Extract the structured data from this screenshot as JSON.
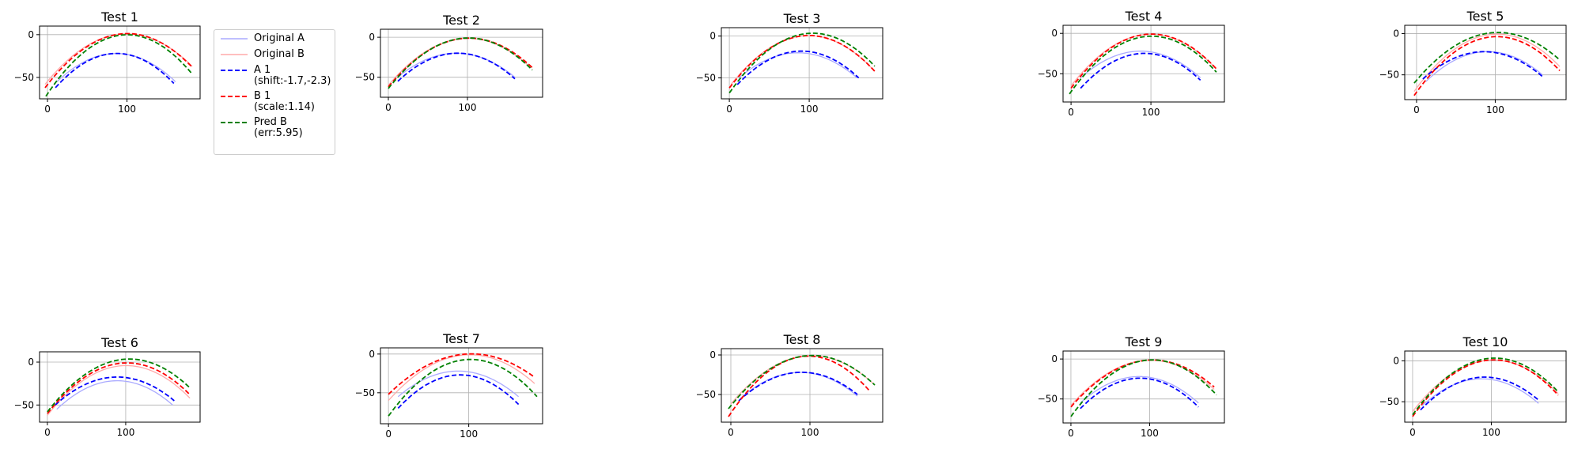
{
  "chart_data": [
    {
      "type": "line",
      "title": "Test 1",
      "xlim": [
        -10,
        192
      ],
      "ylim": [
        -75,
        10
      ],
      "xticks": [
        0,
        100
      ],
      "yticks": [
        0,
        -50
      ],
      "grid": true,
      "series": [
        {
          "name": "Original A",
          "color": "#aaaaff",
          "style": "solid",
          "x": [
            12,
            86,
            161
          ],
          "y": [
            -55,
            -22,
            -55
          ]
        },
        {
          "name": "Original B",
          "color": "#ffaaaa",
          "style": "solid",
          "x": [
            -3,
            86,
            182
          ],
          "y": [
            -58,
            0,
            -37
          ]
        },
        {
          "name": "A 1",
          "color": "#0000ff",
          "style": "dashed",
          "x": [
            10,
            84,
            159
          ],
          "y": [
            -62,
            -22,
            -57
          ]
        },
        {
          "name": "B 1",
          "color": "#ff0000",
          "style": "dashed",
          "x": [
            -3,
            86,
            182
          ],
          "y": [
            -62,
            0,
            -38
          ]
        },
        {
          "name": "Pred B",
          "color": "#008000",
          "style": "dashed",
          "x": [
            -2,
            84,
            182
          ],
          "y": [
            -72,
            -2,
            -46
          ]
        }
      ]
    },
    {
      "type": "line",
      "title": "Test 2",
      "xlim": [
        -10,
        195
      ],
      "ylim": [
        -75,
        10
      ],
      "xticks": [
        0,
        100
      ],
      "yticks": [
        0,
        -50
      ],
      "grid": true,
      "series": [
        {
          "name": "Original A",
          "color": "#aaaaff",
          "style": "solid",
          "x": [
            12,
            90,
            160
          ],
          "y": [
            -50,
            -20,
            -50
          ]
        },
        {
          "name": "Original B",
          "color": "#ffaaaa",
          "style": "solid",
          "x": [
            0,
            90,
            180
          ],
          "y": [
            -60,
            -2,
            -38
          ]
        },
        {
          "name": "A 1",
          "color": "#0000ff",
          "style": "dashed",
          "x": [
            12,
            90,
            160
          ],
          "y": [
            -55,
            -20,
            -52
          ]
        },
        {
          "name": "B 1",
          "color": "#ff0000",
          "style": "dashed",
          "x": [
            0,
            90,
            182
          ],
          "y": [
            -62,
            -2,
            -38
          ]
        },
        {
          "name": "Pred B",
          "color": "#008000",
          "style": "dashed",
          "x": [
            0,
            88,
            182
          ],
          "y": [
            -64,
            -2,
            -41
          ]
        }
      ]
    },
    {
      "type": "line",
      "title": "Test 3",
      "xlim": [
        -10,
        192
      ],
      "ylim": [
        -75,
        10
      ],
      "xticks": [
        0,
        100
      ],
      "yticks": [
        0,
        -50
      ],
      "grid": true,
      "series": [
        {
          "name": "Original A",
          "color": "#aaaaff",
          "style": "solid",
          "x": [
            12,
            88,
            160
          ],
          "y": [
            -50,
            -20,
            -50
          ]
        },
        {
          "name": "Original B",
          "color": "#ffaaaa",
          "style": "solid",
          "x": [
            2,
            90,
            182
          ],
          "y": [
            -58,
            0,
            -42
          ]
        },
        {
          "name": "A 1",
          "color": "#0000ff",
          "style": "dashed",
          "x": [
            10,
            90,
            162
          ],
          "y": [
            -58,
            -18,
            -50
          ]
        },
        {
          "name": "B 1",
          "color": "#ff0000",
          "style": "dashed",
          "x": [
            0,
            90,
            182
          ],
          "y": [
            -62,
            0,
            -42
          ]
        },
        {
          "name": "Pred B",
          "color": "#008000",
          "style": "dashed",
          "x": [
            0,
            90,
            182
          ],
          "y": [
            -68,
            2,
            -36
          ]
        }
      ]
    },
    {
      "type": "line",
      "title": "Test 4",
      "xlim": [
        -10,
        192
      ],
      "ylim": [
        -85,
        10
      ],
      "xticks": [
        0,
        100
      ],
      "yticks": [
        0,
        -50
      ],
      "grid": true,
      "series": [
        {
          "name": "Original A",
          "color": "#aaaaff",
          "style": "solid",
          "x": [
            12,
            86,
            162
          ],
          "y": [
            -55,
            -22,
            -55
          ]
        },
        {
          "name": "Original B",
          "color": "#ffaaaa",
          "style": "solid",
          "x": [
            0,
            88,
            182
          ],
          "y": [
            -65,
            -2,
            -44
          ]
        },
        {
          "name": "A 1",
          "color": "#0000ff",
          "style": "dashed",
          "x": [
            12,
            86,
            162
          ],
          "y": [
            -68,
            -25,
            -58
          ]
        },
        {
          "name": "B 1",
          "color": "#ff0000",
          "style": "dashed",
          "x": [
            0,
            88,
            182
          ],
          "y": [
            -68,
            -2,
            -44
          ]
        },
        {
          "name": "Pred B",
          "color": "#008000",
          "style": "dashed",
          "x": [
            -2,
            86,
            182
          ],
          "y": [
            -75,
            -5,
            -48
          ]
        }
      ]
    },
    {
      "type": "line",
      "title": "Test 5",
      "xlim": [
        -15,
        190
      ],
      "ylim": [
        -80,
        10
      ],
      "xticks": [
        0,
        100
      ],
      "yticks": [
        0,
        -50
      ],
      "grid": true,
      "series": [
        {
          "name": "Original A",
          "color": "#aaaaff",
          "style": "solid",
          "x": [
            12,
            86,
            160
          ],
          "y": [
            -58,
            -22,
            -50
          ]
        },
        {
          "name": "Original B",
          "color": "#ffaaaa",
          "style": "solid",
          "x": [
            -3,
            88,
            182
          ],
          "y": [
            -70,
            -2,
            -40
          ]
        },
        {
          "name": "A 1",
          "color": "#0000ff",
          "style": "dashed",
          "x": [
            8,
            86,
            160
          ],
          "y": [
            -55,
            -22,
            -52
          ]
        },
        {
          "name": "B 1",
          "color": "#ff0000",
          "style": "dashed",
          "x": [
            -3,
            88,
            182
          ],
          "y": [
            -75,
            -5,
            -45
          ]
        },
        {
          "name": "Pred B",
          "color": "#008000",
          "style": "dashed",
          "x": [
            -3,
            88,
            182
          ],
          "y": [
            -60,
            0,
            -32
          ]
        }
      ]
    },
    {
      "type": "line",
      "title": "Test 6",
      "xlim": [
        -10,
        195
      ],
      "ylim": [
        -70,
        12
      ],
      "xticks": [
        0,
        100
      ],
      "yticks": [
        0,
        -50
      ],
      "grid": true,
      "series": [
        {
          "name": "Original A",
          "color": "#aaaaff",
          "style": "solid",
          "x": [
            12,
            96,
            160
          ],
          "y": [
            -55,
            -22,
            -50
          ]
        },
        {
          "name": "Original B",
          "color": "#ffaaaa",
          "style": "solid",
          "x": [
            0,
            88,
            182
          ],
          "y": [
            -62,
            -5,
            -42
          ]
        },
        {
          "name": "A 1",
          "color": "#0000ff",
          "style": "dashed",
          "x": [
            10,
            100,
            162
          ],
          "y": [
            -50,
            -18,
            -45
          ]
        },
        {
          "name": "B 1",
          "color": "#ff0000",
          "style": "dashed",
          "x": [
            0,
            88,
            182
          ],
          "y": [
            -60,
            -2,
            -38
          ]
        },
        {
          "name": "Pred B",
          "color": "#008000",
          "style": "dashed",
          "x": [
            0,
            88,
            182
          ],
          "y": [
            -58,
            2,
            -30
          ]
        }
      ]
    },
    {
      "type": "line",
      "title": "Test 7",
      "xlim": [
        -10,
        192
      ],
      "ylim": [
        -90,
        8
      ],
      "xticks": [
        0,
        100
      ],
      "yticks": [
        0,
        -50
      ],
      "grid": true,
      "series": [
        {
          "name": "Original A",
          "color": "#aaaaff",
          "style": "solid",
          "x": [
            12,
            86,
            162
          ],
          "y": [
            -55,
            -22,
            -55
          ]
        },
        {
          "name": "Original B",
          "color": "#ffaaaa",
          "style": "solid",
          "x": [
            0,
            88,
            182
          ],
          "y": [
            -60,
            -2,
            -38
          ]
        },
        {
          "name": "A 1",
          "color": "#0000ff",
          "style": "dashed",
          "x": [
            12,
            86,
            162
          ],
          "y": [
            -70,
            -27,
            -65
          ]
        },
        {
          "name": "B 1",
          "color": "#ff0000",
          "style": "dashed",
          "x": [
            0,
            96,
            182
          ],
          "y": [
            -52,
            0,
            -30
          ]
        },
        {
          "name": "Pred B",
          "color": "#008000",
          "style": "dashed",
          "x": [
            0,
            90,
            185
          ],
          "y": [
            -80,
            -8,
            -55
          ]
        }
      ]
    },
    {
      "type": "line",
      "title": "Test 8",
      "xlim": [
        -12,
        192
      ],
      "ylim": [
        -85,
        8
      ],
      "xticks": [
        0,
        100
      ],
      "yticks": [
        0,
        -50
      ],
      "grid": true,
      "series": [
        {
          "name": "Original A",
          "color": "#aaaaff",
          "style": "solid",
          "x": [
            12,
            86,
            160
          ],
          "y": [
            -55,
            -22,
            -52
          ]
        },
        {
          "name": "Original B",
          "color": "#ffaaaa",
          "style": "solid",
          "x": [
            0,
            88,
            182
          ],
          "y": [
            -62,
            -2,
            -38
          ]
        },
        {
          "name": "A 1",
          "color": "#0000ff",
          "style": "dashed",
          "x": [
            10,
            86,
            160
          ],
          "y": [
            -58,
            -22,
            -50
          ]
        },
        {
          "name": "B 1",
          "color": "#ff0000",
          "style": "dashed",
          "x": [
            -3,
            90,
            175
          ],
          "y": [
            -78,
            -2,
            -45
          ]
        },
        {
          "name": "Pred B",
          "color": "#008000",
          "style": "dashed",
          "x": [
            -3,
            88,
            182
          ],
          "y": [
            -68,
            -2,
            -38
          ]
        }
      ]
    },
    {
      "type": "line",
      "title": "Test 9",
      "xlim": [
        -10,
        195
      ],
      "ylim": [
        -80,
        10
      ],
      "xticks": [
        0,
        100
      ],
      "yticks": [
        0,
        -50
      ],
      "grid": true,
      "series": [
        {
          "name": "Original A",
          "color": "#aaaaff",
          "style": "solid",
          "x": [
            12,
            90,
            162
          ],
          "y": [
            -55,
            -22,
            -55
          ]
        },
        {
          "name": "Original B",
          "color": "#ffaaaa",
          "style": "solid",
          "x": [
            0,
            92,
            182
          ],
          "y": [
            -58,
            -2,
            -38
          ]
        },
        {
          "name": "A 1",
          "color": "#0000ff",
          "style": "dashed",
          "x": [
            12,
            90,
            162
          ],
          "y": [
            -62,
            -24,
            -60
          ]
        },
        {
          "name": "B 1",
          "color": "#ff0000",
          "style": "dashed",
          "x": [
            0,
            92,
            182
          ],
          "y": [
            -60,
            -2,
            -35
          ]
        },
        {
          "name": "Pred B",
          "color": "#008000",
          "style": "dashed",
          "x": [
            0,
            92,
            185
          ],
          "y": [
            -72,
            -2,
            -45
          ]
        }
      ]
    },
    {
      "type": "line",
      "title": "Test 10",
      "xlim": [
        -10,
        195
      ],
      "ylim": [
        -75,
        12
      ],
      "xticks": [
        0,
        100
      ],
      "yticks": [
        0,
        -50
      ],
      "grid": true,
      "series": [
        {
          "name": "Original A",
          "color": "#aaaaff",
          "style": "solid",
          "x": [
            12,
            86,
            160
          ],
          "y": [
            -55,
            -22,
            -52
          ]
        },
        {
          "name": "Original B",
          "color": "#ffaaaa",
          "style": "solid",
          "x": [
            0,
            90,
            185
          ],
          "y": [
            -62,
            0,
            -40
          ]
        },
        {
          "name": "A 1",
          "color": "#0000ff",
          "style": "dashed",
          "x": [
            10,
            88,
            160
          ],
          "y": [
            -60,
            -20,
            -48
          ]
        },
        {
          "name": "B 1",
          "color": "#ff0000",
          "style": "dashed",
          "x": [
            0,
            90,
            185
          ],
          "y": [
            -68,
            0,
            -42
          ]
        },
        {
          "name": "Pred B",
          "color": "#008000",
          "style": "dashed",
          "x": [
            0,
            90,
            185
          ],
          "y": [
            -66,
            2,
            -38
          ]
        }
      ]
    }
  ],
  "legend": {
    "placement": "right of Test 1",
    "items": [
      {
        "name": "Original A",
        "line1": "Original A",
        "line2": "",
        "color": "#aaaaff",
        "style": "solid"
      },
      {
        "name": "Original B",
        "line1": "Original B",
        "line2": "",
        "color": "#ffaaaa",
        "style": "solid"
      },
      {
        "name": "A 1",
        "line1": "A 1",
        "line2": "(shift:-1.7,-2.3)",
        "color": "#0000ff",
        "style": "dashed"
      },
      {
        "name": "B 1",
        "line1": "B 1",
        "line2": "(scale:1.14)",
        "color": "#ff0000",
        "style": "dashed"
      },
      {
        "name": "Pred B",
        "line1": "Pred B",
        "line2": "(err:5.95)",
        "color": "#008000",
        "style": "dashed"
      }
    ]
  }
}
